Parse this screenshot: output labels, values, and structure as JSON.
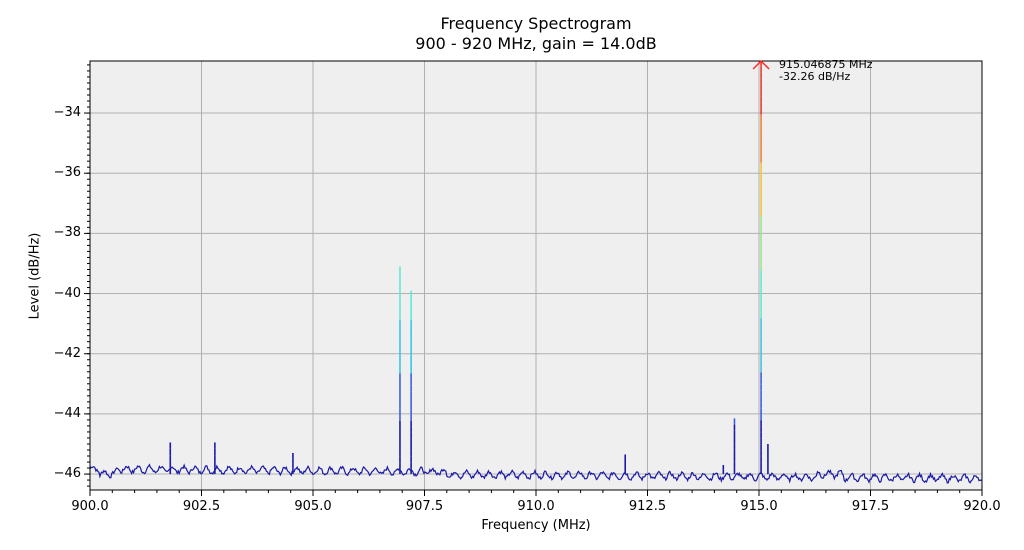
{
  "chart_data": {
    "type": "line",
    "title": "Frequency Spectrogram",
    "subtitle": "900 - 920 MHz, gain = 14.0dB",
    "xlabel": "Frequency (MHz)",
    "ylabel": "Level (dB/Hz)",
    "xlim": [
      900.0,
      920.0
    ],
    "ylim": [
      -46.53,
      -32.27
    ],
    "x_ticks": [
      "900.0",
      "902.5",
      "905.0",
      "907.5",
      "910.0",
      "912.5",
      "915.0",
      "917.5",
      "920.0"
    ],
    "y_ticks": [
      "-34",
      "-36",
      "-38",
      "-40",
      "-42",
      "-44",
      "-46"
    ],
    "grid": true,
    "background": "#efefef",
    "noise_floor_db": -46.0,
    "peaks": [
      {
        "freq": 901.8,
        "level": -44.95
      },
      {
        "freq": 902.8,
        "level": -44.95
      },
      {
        "freq": 904.55,
        "level": -45.3
      },
      {
        "freq": 906.95,
        "level": -39.1
      },
      {
        "freq": 907.2,
        "level": -39.9
      },
      {
        "freq": 912.0,
        "level": -45.35
      },
      {
        "freq": 914.2,
        "level": -45.7
      },
      {
        "freq": 914.45,
        "level": -44.15
      },
      {
        "freq": 915.046875,
        "level": -32.26
      },
      {
        "freq": 915.2,
        "level": -45.0
      }
    ],
    "annotation": {
      "freq_label": "915.046875 MHz",
      "level_label": "-32.26 dB/Hz",
      "marker": "arrow",
      "marker_color": "#ff2a2a"
    },
    "line_color": "#1a1aa6",
    "colormap": [
      "#1a1aa6",
      "#3a5fe0",
      "#39c4e6",
      "#5eead0",
      "#9ae68a",
      "#f2c43a",
      "#f08030",
      "#e83a2a"
    ]
  }
}
